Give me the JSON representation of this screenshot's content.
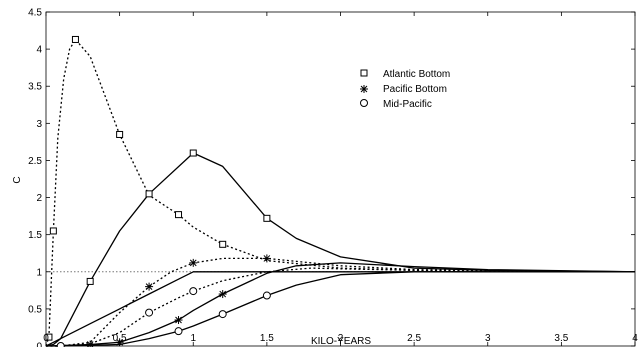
{
  "chart_data": {
    "type": "line",
    "xlabel": "KILO-YEARS",
    "ylabel": "C",
    "xlim": [
      0,
      4
    ],
    "ylim": [
      0,
      4.5
    ],
    "x_ticks": [
      "0",
      "0.5",
      "1",
      "1.5",
      "2",
      "2.5",
      "3",
      "3.5",
      "4"
    ],
    "y_ticks": [
      "0",
      "0.5",
      "1",
      "1.5",
      "2",
      "2.5",
      "3",
      "3.5",
      "4",
      "4.5"
    ],
    "grid": false,
    "legend_position": "top-right",
    "reference_line": {
      "y": 1.0,
      "style": "dotted"
    },
    "legend": [
      {
        "label": "Atlantic Bottom",
        "marker": "square"
      },
      {
        "label": "Pacific Bottom",
        "marker": "asterisk"
      },
      {
        "label": "Mid-Pacific",
        "marker": "circle"
      }
    ],
    "series": [
      {
        "marker": "square",
        "line_style": "dotted",
        "x": [
          0,
          0.02,
          0.05,
          0.08,
          0.12,
          0.16,
          0.2,
          0.3,
          0.5,
          0.7,
          0.9,
          1.0,
          1.2,
          1.5,
          2.0,
          2.5,
          3.0,
          4.0
        ],
        "y": [
          0,
          0.12,
          1.55,
          2.8,
          3.6,
          4.0,
          4.13,
          3.9,
          2.85,
          2.03,
          1.77,
          1.6,
          1.37,
          1.15,
          1.05,
          1.02,
          1.0,
          1.0
        ],
        "markers_at": [
          0.02,
          0.05,
          0.2,
          0.5,
          0.9,
          1.2
        ]
      },
      {
        "marker": "square",
        "line_style": "solid",
        "x": [
          0,
          0.05,
          0.1,
          0.3,
          0.5,
          0.7,
          1.0,
          1.2,
          1.5,
          1.7,
          2.0,
          2.5,
          3.0,
          4.0
        ],
        "y": [
          0,
          0.02,
          0.1,
          0.87,
          1.55,
          2.05,
          2.6,
          2.42,
          1.72,
          1.45,
          1.2,
          1.05,
          1.02,
          1.0
        ],
        "markers_at": [
          0.3,
          0.7,
          1.0,
          1.5
        ]
      },
      {
        "marker": "asterisk",
        "line_style": "dotted",
        "x": [
          0,
          0.1,
          0.3,
          0.5,
          0.7,
          0.85,
          1.0,
          1.2,
          1.5,
          2.0,
          2.5,
          3.0,
          4.0
        ],
        "y": [
          0,
          0.0,
          0.05,
          0.45,
          0.8,
          1.0,
          1.12,
          1.18,
          1.18,
          1.08,
          1.03,
          1.01,
          1.0
        ],
        "markers_at": [
          0.7,
          1.0,
          1.5
        ]
      },
      {
        "marker": "asterisk",
        "line_style": "solid",
        "x": [
          0,
          0.05,
          0.1,
          0.3,
          0.5,
          0.7,
          0.9,
          1.0,
          1.2,
          1.5,
          2.0,
          2.5,
          3.0,
          4.0
        ],
        "y": [
          0,
          0.05,
          0.1,
          0.3,
          0.5,
          0.7,
          0.9,
          1.0,
          1.0,
          1.0,
          1.0,
          1.0,
          1.0,
          1.0
        ],
        "markers_at": []
      },
      {
        "marker": "asterisk",
        "line_style": "solid",
        "x": [
          0,
          0.3,
          0.5,
          0.7,
          0.9,
          1.0,
          1.2,
          1.5,
          1.7,
          2.0,
          2.5,
          3.0,
          4.0
        ],
        "y": [
          0,
          0.02,
          0.05,
          0.18,
          0.35,
          0.48,
          0.7,
          0.98,
          1.08,
          1.12,
          1.07,
          1.03,
          1.0
        ],
        "markers_at": [
          0.3,
          0.5,
          0.9,
          1.2
        ]
      },
      {
        "marker": "circle",
        "line_style": "dotted",
        "x": [
          0,
          0.1,
          0.3,
          0.5,
          0.7,
          0.9,
          1.0,
          1.2,
          1.5,
          1.8,
          2.0,
          2.5,
          3.0,
          4.0
        ],
        "y": [
          0,
          0.0,
          0.03,
          0.18,
          0.45,
          0.65,
          0.74,
          0.88,
          1.0,
          1.05,
          1.04,
          1.02,
          1.01,
          1.0
        ],
        "markers_at": [
          0.1,
          0.7,
          1.0
        ]
      },
      {
        "marker": "circle",
        "line_style": "solid",
        "x": [
          0,
          0.1,
          0.3,
          0.5,
          0.7,
          0.9,
          1.0,
          1.2,
          1.5,
          1.7,
          2.0,
          2.5,
          3.0,
          4.0
        ],
        "y": [
          0,
          0.0,
          0.01,
          0.02,
          0.1,
          0.2,
          0.27,
          0.43,
          0.68,
          0.82,
          0.96,
          1.0,
          1.0,
          1.0
        ],
        "markers_at": [
          0.9,
          1.2,
          1.5
        ]
      }
    ]
  }
}
